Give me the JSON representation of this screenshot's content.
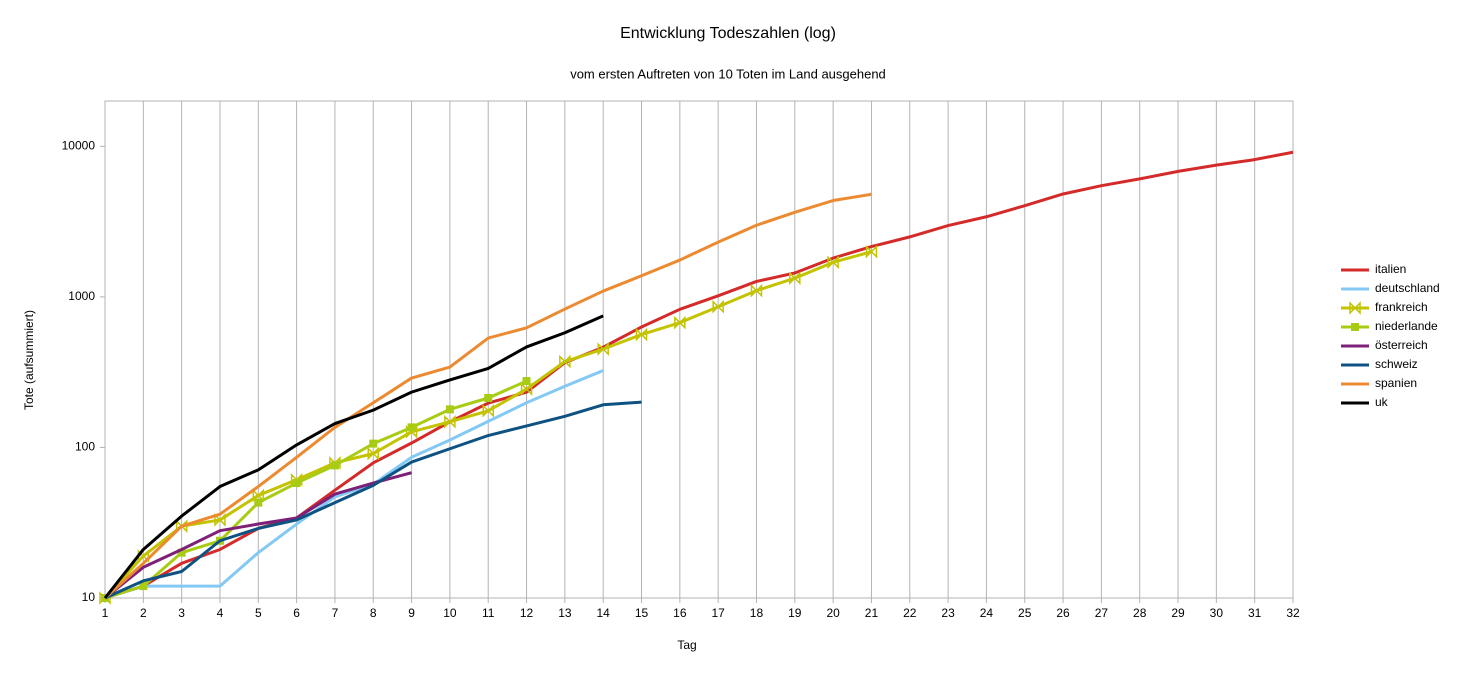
{
  "chart_data": {
    "type": "line",
    "title": "Entwicklung Todeszahlen (log)",
    "subtitle": "vom ersten Auftreten von 10 Toten im Land ausgehend",
    "xlabel": "Tag",
    "ylabel": "Tote (aufsummiert)",
    "x": [
      1,
      2,
      3,
      4,
      5,
      6,
      7,
      8,
      9,
      10,
      11,
      12,
      13,
      14,
      15,
      16,
      17,
      18,
      19,
      20,
      21,
      22,
      23,
      24,
      25,
      26,
      27,
      28,
      29,
      30,
      31,
      32
    ],
    "xlim": [
      1,
      32
    ],
    "xticks": [
      1,
      2,
      3,
      4,
      5,
      6,
      7,
      8,
      9,
      10,
      11,
      12,
      13,
      14,
      15,
      16,
      17,
      18,
      19,
      20,
      21,
      22,
      23,
      24,
      25,
      26,
      27,
      28,
      29,
      30,
      31,
      32
    ],
    "ylim": [
      10,
      20000
    ],
    "yticks": [
      10,
      100,
      1000,
      10000
    ],
    "ylog": true,
    "xgrid": true,
    "legend": "right",
    "series": [
      {
        "name": "italien",
        "color": "#d42a2a",
        "values": [
          10,
          12,
          17,
          21,
          29,
          34,
          52,
          79,
          107,
          148,
          197,
          233,
          366,
          463,
          631,
          827,
          1016,
          1266,
          1441,
          1809,
          2158,
          2503,
          2978,
          3405,
          4032,
          4825,
          5476,
          6077,
          6820,
          7503,
          8165,
          9134
        ]
      },
      {
        "name": "deutschland",
        "color": "#83c9f4",
        "values": [
          10,
          12,
          12,
          12,
          20,
          31,
          47,
          57,
          86,
          112,
          149,
          198,
          255,
          324,
          null,
          null,
          null,
          null,
          null,
          null,
          null,
          null,
          null,
          null,
          null,
          null,
          null,
          null,
          null,
          null,
          null,
          null
        ]
      },
      {
        "name": "frankreich",
        "color": "#c3c300",
        "marker": "x",
        "values": [
          10,
          19,
          30,
          33,
          48,
          61,
          79,
          91,
          127,
          148,
          175,
          244,
          372,
          450,
          562,
          674,
          860,
          1100,
          1331,
          1696,
          1995,
          null,
          null,
          null,
          null,
          null,
          null,
          null,
          null,
          null,
          null,
          null
        ]
      },
      {
        "name": "niederlande",
        "color": "#a8cc14",
        "marker": "square",
        "values": [
          10,
          12,
          20,
          24,
          43,
          58,
          76,
          106,
          136,
          179,
          213,
          276,
          null,
          null,
          null,
          null,
          null,
          null,
          null,
          null,
          null,
          null,
          null,
          null,
          null,
          null,
          null,
          null,
          null,
          null,
          null,
          null
        ]
      },
      {
        "name": "österreich",
        "color": "#7e1f78",
        "values": [
          10,
          16,
          21,
          28,
          31,
          34,
          49,
          58,
          68,
          null,
          null,
          null,
          null,
          null,
          null,
          null,
          null,
          null,
          null,
          null,
          null,
          null,
          null,
          null,
          null,
          null,
          null,
          null,
          null,
          null,
          null,
          null
        ]
      },
      {
        "name": "schweiz",
        "color": "#0e5283",
        "values": [
          10,
          13,
          15,
          24,
          29,
          33,
          43,
          56,
          80,
          98,
          120,
          139,
          161,
          192,
          200,
          null,
          null,
          null,
          null,
          null,
          null,
          null,
          null,
          null,
          null,
          null,
          null,
          null,
          null,
          null,
          null,
          null
        ]
      },
      {
        "name": "spanien",
        "color": "#ec8a31",
        "values": [
          10,
          17,
          30,
          36,
          55,
          86,
          136,
          198,
          289,
          342,
          533,
          623,
          830,
          1093,
          1381,
          1756,
          2311,
          2991,
          3647,
          4365,
          4800,
          null,
          null,
          null,
          null,
          null,
          null,
          null,
          null,
          null,
          null,
          null
        ]
      },
      {
        "name": "uk",
        "color": "#000000",
        "values": [
          10,
          21,
          35,
          55,
          71,
          104,
          144,
          177,
          233,
          281,
          335,
          465,
          578,
          748,
          null,
          null,
          null,
          null,
          null,
          null,
          null,
          null,
          null,
          null,
          null,
          null,
          null,
          null,
          null,
          null,
          null,
          null
        ]
      }
    ]
  }
}
